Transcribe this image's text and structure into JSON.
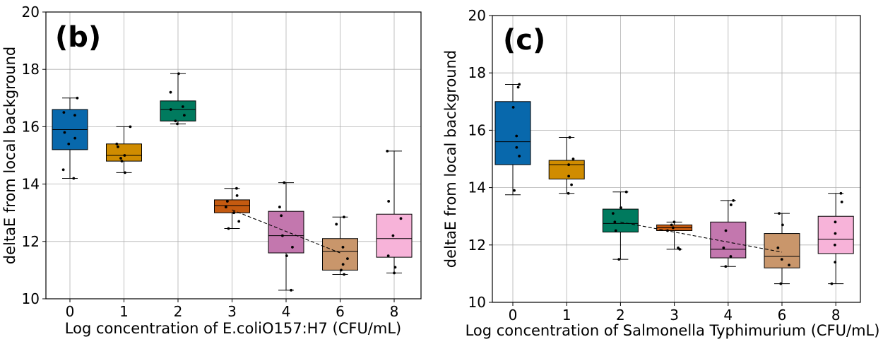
{
  "chart_data": [
    {
      "type": "box",
      "panel_label": "(b)",
      "xlabel": "Log concentration of E.coliO157:H7 (CFU/mL)",
      "ylabel": "deltaE from local background",
      "ylim": [
        10,
        20
      ],
      "yticks": [
        "10",
        "12",
        "14",
        "16",
        "18",
        "20"
      ],
      "categories": [
        "0",
        "1",
        "2",
        "3",
        "4",
        "6",
        "8"
      ],
      "grid": true,
      "boxes": [
        {
          "category": "0",
          "color": "#0868ac",
          "whisker_low": 14.2,
          "q1": 15.2,
          "median": 15.9,
          "q3": 16.6,
          "whisker_high": 17.0,
          "points": [
            14.2,
            14.5,
            15.4,
            15.6,
            15.8,
            16.4,
            16.5,
            17.0
          ]
        },
        {
          "category": "1",
          "color": "#d08c00",
          "whisker_low": 14.4,
          "q1": 14.8,
          "median": 15.0,
          "q3": 15.4,
          "whisker_high": 16.0,
          "points": [
            14.4,
            14.8,
            14.9,
            15.0,
            15.3,
            15.4,
            16.0
          ]
        },
        {
          "category": "2",
          "color": "#007a5e",
          "whisker_low": 16.1,
          "q1": 16.2,
          "median": 16.6,
          "q3": 16.9,
          "whisker_high": 17.85,
          "points": [
            16.1,
            16.2,
            16.4,
            16.6,
            16.7,
            17.2,
            17.85
          ]
        },
        {
          "category": "3",
          "color": "#c45a10",
          "whisker_low": 12.45,
          "q1": 13.0,
          "median": 13.25,
          "q3": 13.45,
          "whisker_high": 13.85,
          "points": [
            12.45,
            12.7,
            13.0,
            13.2,
            13.4,
            13.6,
            13.85
          ]
        },
        {
          "category": "4",
          "color": "#c377ae",
          "whisker_low": 10.3,
          "q1": 11.6,
          "median": 12.2,
          "q3": 13.05,
          "whisker_high": 14.05,
          "points": [
            10.3,
            11.5,
            11.8,
            12.2,
            12.9,
            13.2,
            14.05
          ]
        },
        {
          "category": "6",
          "color": "#c9966b",
          "whisker_low": 10.85,
          "q1": 11.0,
          "median": 11.65,
          "q3": 12.1,
          "whisker_high": 12.85,
          "points": [
            10.85,
            11.0,
            11.2,
            11.4,
            11.8,
            12.6,
            12.85
          ]
        },
        {
          "category": "8",
          "color": "#f7b3d9",
          "whisker_low": 10.9,
          "q1": 11.45,
          "median": 12.1,
          "q3": 12.95,
          "whisker_high": 15.15,
          "points": [
            10.9,
            11.1,
            11.5,
            12.2,
            12.8,
            13.4,
            15.15
          ]
        }
      ],
      "trend_line": {
        "style": "dashed",
        "from": {
          "category": "3",
          "value": 13.1
        },
        "to": {
          "category": "6",
          "value": 11.6
        }
      }
    },
    {
      "type": "box",
      "panel_label": "(c)",
      "xlabel": "Log concentration of Salmonella Typhimurium (CFU/mL)",
      "ylabel": "deltaE from local background",
      "ylim": [
        10,
        20
      ],
      "yticks": [
        "10",
        "12",
        "14",
        "16",
        "18",
        "20"
      ],
      "categories": [
        "0",
        "1",
        "2",
        "3",
        "4",
        "6",
        "8"
      ],
      "grid": true,
      "boxes": [
        {
          "category": "0",
          "color": "#0868ac",
          "whisker_low": 13.75,
          "q1": 14.8,
          "median": 15.6,
          "q3": 17.0,
          "whisker_high": 17.6,
          "points": [
            13.9,
            15.1,
            15.4,
            15.8,
            16.8,
            17.5,
            17.6
          ]
        },
        {
          "category": "1",
          "color": "#d08c00",
          "whisker_low": 13.8,
          "q1": 14.3,
          "median": 14.8,
          "q3": 14.95,
          "whisker_high": 15.75,
          "points": [
            13.8,
            14.1,
            14.4,
            14.8,
            15.0,
            15.75
          ]
        },
        {
          "category": "2",
          "color": "#007a5e",
          "whisker_low": 11.5,
          "q1": 12.45,
          "median": 12.75,
          "q3": 13.25,
          "whisker_high": 13.85,
          "points": [
            11.5,
            12.5,
            12.8,
            13.1,
            13.3,
            13.85
          ]
        },
        {
          "category": "3",
          "color": "#c45a10",
          "whisker_low": 11.85,
          "q1": 12.5,
          "median": 12.6,
          "q3": 12.7,
          "whisker_high": 12.8,
          "points": [
            11.85,
            11.9,
            12.5,
            12.6,
            12.7,
            12.8
          ]
        },
        {
          "category": "4",
          "color": "#c377ae",
          "whisker_low": 11.25,
          "q1": 11.55,
          "median": 11.85,
          "q3": 12.8,
          "whisker_high": 13.55,
          "points": [
            11.25,
            11.6,
            11.9,
            12.5,
            13.4,
            13.55
          ]
        },
        {
          "category": "6",
          "color": "#c9966b",
          "whisker_low": 10.65,
          "q1": 11.2,
          "median": 11.6,
          "q3": 12.4,
          "whisker_high": 13.1,
          "points": [
            10.65,
            11.3,
            11.5,
            11.9,
            12.7,
            13.1
          ]
        },
        {
          "category": "8",
          "color": "#f7b3d9",
          "whisker_low": 10.65,
          "q1": 11.7,
          "median": 12.2,
          "q3": 13.0,
          "whisker_high": 13.8,
          "points": [
            10.65,
            11.4,
            12.0,
            12.4,
            12.8,
            13.5,
            13.8
          ]
        }
      ],
      "trend_line": {
        "style": "dashed",
        "from": {
          "category": "2",
          "value": 12.8
        },
        "to": {
          "category": "6",
          "value": 11.75
        }
      }
    }
  ]
}
